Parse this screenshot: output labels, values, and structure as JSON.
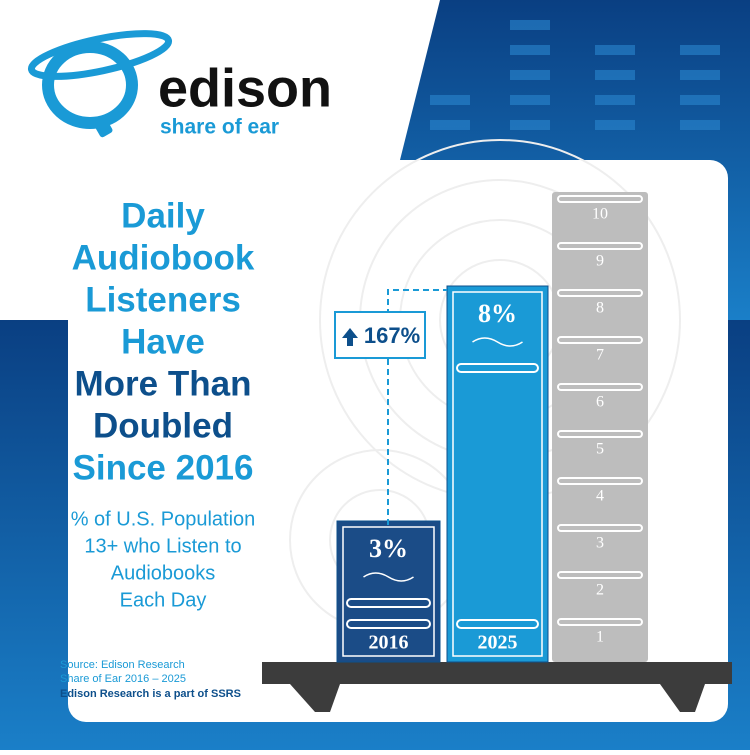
{
  "brand": {
    "name": "edison",
    "tagline": "share of ear"
  },
  "chart_data": {
    "type": "bar",
    "title_lines": [
      {
        "text": "Daily",
        "color": "#1a9ad6"
      },
      {
        "text": "Audiobook",
        "color": "#1a9ad6"
      },
      {
        "text": "Listeners",
        "color": "#1a9ad6"
      },
      {
        "text": "Have",
        "color": "#1a9ad6"
      },
      {
        "text": "More Than",
        "color": "#0d4f8b"
      },
      {
        "text": "Doubled",
        "color": "#0d4f8b"
      },
      {
        "text": "Since 2016",
        "color": "#1a9ad6"
      }
    ],
    "subtitle_lines": [
      "% of U.S. Population",
      "13+ who Listen to",
      "Audiobooks",
      "Each Day"
    ],
    "categories": [
      "2016",
      "2025"
    ],
    "values": [
      3,
      8
    ],
    "value_labels": [
      "3%",
      "8%"
    ],
    "colors": [
      "#1b4c87",
      "#1a9ad6"
    ],
    "ylim": [
      0,
      10
    ],
    "yticks": [
      1,
      2,
      3,
      4,
      5,
      6,
      7,
      8,
      9,
      10
    ],
    "annotation": "167%",
    "source_lines": [
      "Source: Edison Research",
      "Share of Ear 2016 – 2025"
    ],
    "footnote": "Edison Research is a part of SSRS"
  }
}
